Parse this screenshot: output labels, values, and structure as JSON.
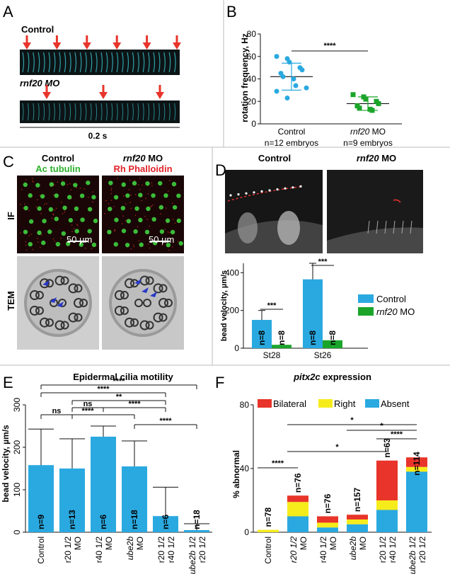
{
  "colors": {
    "control": "#2aa9e0",
    "mo": "#1aa52a",
    "red": "#e8342a",
    "yellow": "#f6ec1c",
    "blue": "#2aa9e0",
    "cyan_line": "#3ecfd8"
  },
  "panelA": {
    "letter": "A",
    "control_label": "Control",
    "mo_label": "rnf20 MO",
    "scale_label": "0.2 s",
    "control_arrow_count": 6,
    "mo_arrow_count": 3
  },
  "panelB": {
    "letter": "B",
    "ylabel": "rotation frequency, Hz",
    "sig": "****",
    "chart_data": {
      "type": "scatter",
      "ylim": [
        0,
        80
      ],
      "yticks": [
        0,
        20,
        40,
        60,
        80
      ],
      "categories": [
        "Control",
        "rnf20 MO"
      ],
      "category_labels": [
        [
          "Control",
          "n=12 embryos"
        ],
        [
          "rnf20 MO",
          "n=9 embryos"
        ]
      ],
      "series": [
        {
          "name": "Control",
          "values": [
            60,
            58,
            55,
            50,
            48,
            45,
            42,
            40,
            34,
            32,
            29,
            23
          ],
          "mean": 42,
          "sd": 12
        },
        {
          "name": "rnf20 MO",
          "values": [
            26,
            24,
            22,
            20,
            18,
            16,
            14,
            13,
            12
          ],
          "mean": 18,
          "sd": 6
        }
      ]
    }
  },
  "panelC": {
    "letter": "C",
    "control_title": "Control",
    "control_stain": "Ac tubulin",
    "mo_title": "rnf20 MO",
    "mo_stain": "Rh Phalloidin",
    "row_if": "IF",
    "row_tem": "TEM",
    "scalebar1": "50 µm",
    "scalebar2": "50 µm"
  },
  "panelD": {
    "letter": "D",
    "control_title": "Control",
    "mo_title": "rnf20 MO",
    "ylabel": "bead velocity, µm/s",
    "chart_data": {
      "type": "bar",
      "ylim": [
        0,
        450
      ],
      "yticks": [
        0,
        200,
        400
      ],
      "categories": [
        "St28",
        "St26"
      ],
      "series": [
        {
          "name": "Control",
          "values": [
            150,
            365
          ],
          "err": [
            50,
            85
          ],
          "n": [
            "n=8",
            "n=8"
          ]
        },
        {
          "name": "rnf20 MO",
          "values": [
            18,
            42
          ],
          "err": [
            0,
            0
          ],
          "n": [
            "n=8",
            "n=8"
          ]
        }
      ],
      "legend": [
        "Control",
        "rnf20 MO"
      ],
      "sig": [
        "***",
        "***"
      ]
    }
  },
  "panelE": {
    "letter": "E",
    "title": "Epidermal cilia motility",
    "ylabel": "bead velocity, µm/s",
    "chart_data": {
      "type": "bar",
      "ylim": [
        0,
        300
      ],
      "yticks": [
        0,
        100,
        200,
        300
      ],
      "categories": [
        "Control",
        "r20 1/2 MO",
        "r40 1/2 MO",
        "ube2b MO",
        "r20 1/2 r40 1/2",
        "ube2b 1/2 r20 1/2"
      ],
      "category_lines": [
        [
          "Control"
        ],
        [
          "r20 1/2",
          "MO"
        ],
        [
          "r40 1/2",
          "MO"
        ],
        [
          "ube2b",
          "MO"
        ],
        [
          "r20 1/2",
          "r40 1/2"
        ],
        [
          "ube2b 1/2",
          "r20 1/2"
        ]
      ],
      "values": [
        158,
        150,
        225,
        155,
        38,
        5
      ],
      "err": [
        85,
        70,
        25,
        60,
        68,
        15
      ],
      "n": [
        "n=9",
        "n=13",
        "n=6",
        "n=18",
        "n=6",
        "n=18"
      ],
      "sig": [
        "****",
        "****",
        "**",
        "****",
        "****",
        "****",
        "ns",
        "ns"
      ]
    }
  },
  "panelF": {
    "letter": "F",
    "title": "pitx2c expression",
    "ylabel": "% abnormal",
    "chart_data": {
      "type": "bar",
      "stacked": true,
      "ylim": [
        0,
        80
      ],
      "yticks": [
        0,
        40,
        80
      ],
      "categories": [
        "Control",
        "r20 1/2 MO",
        "r40 1/2 MO",
        "ube2b MO",
        "r20 1/2 r40 1/2",
        "ube2b 1/2 r20 1/2"
      ],
      "category_lines": [
        [
          "Control"
        ],
        [
          "r20 1/2",
          "MO"
        ],
        [
          "r40 1/2",
          "MO"
        ],
        [
          "ube2b",
          "MO"
        ],
        [
          "r20 1/2",
          "r40 1/2"
        ],
        [
          "ube2b 1/2",
          "r20 1/2"
        ]
      ],
      "series": [
        {
          "name": "Absent",
          "values": [
            0,
            10,
            3,
            5,
            14,
            38
          ]
        },
        {
          "name": "Right",
          "values": [
            1.5,
            9,
            3,
            3,
            6,
            3
          ]
        },
        {
          "name": "Bilateral",
          "values": [
            0,
            4,
            4,
            3,
            25,
            6
          ]
        }
      ],
      "legend": [
        "Bilateral",
        "Right",
        "Absent"
      ],
      "n": [
        "n=78",
        "n=76",
        "n=76",
        "n=157",
        "n=63",
        "n=114"
      ],
      "sig": [
        "****",
        "*",
        "*",
        "****",
        "*"
      ]
    }
  }
}
